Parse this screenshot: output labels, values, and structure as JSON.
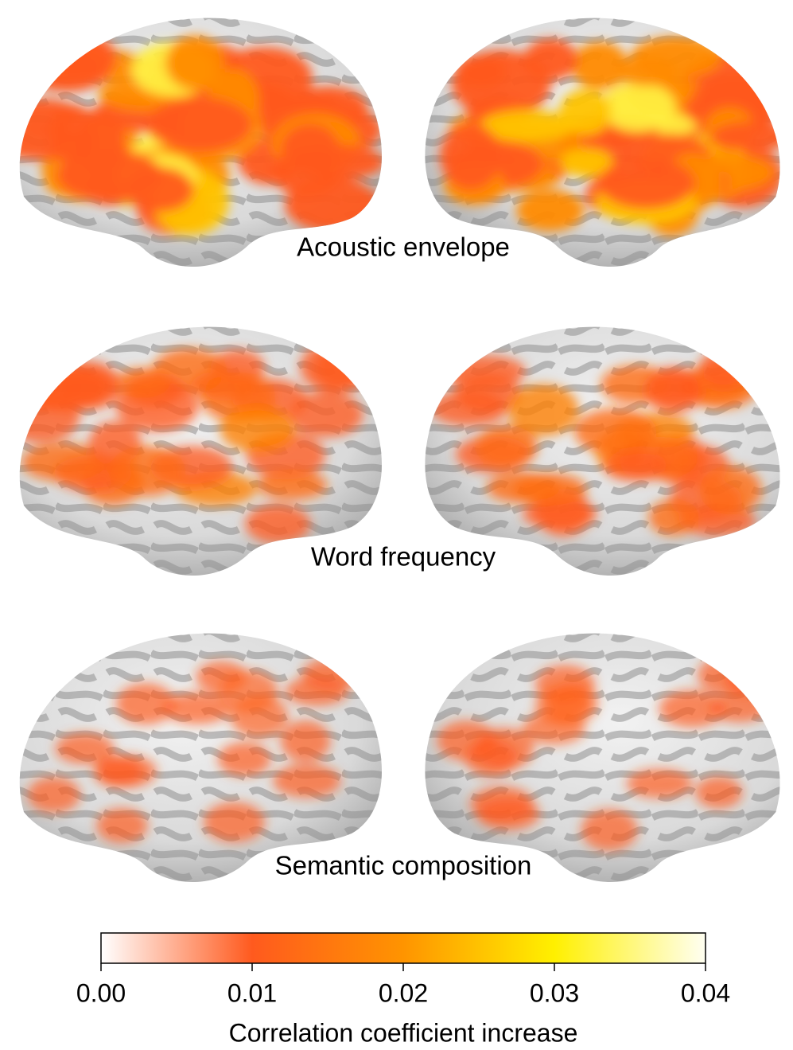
{
  "panels": [
    {
      "label": "Acoustic envelope"
    },
    {
      "label": "Word frequency"
    },
    {
      "label": "Semantic composition"
    }
  ],
  "colorbar": {
    "lim": [
      0,
      0.04
    ],
    "ticks": [
      {
        "value": 0,
        "label": "0.00"
      },
      0.01,
      0.02,
      0.03,
      0.04
    ],
    "label": "Correlation coefficient increase",
    "colors": [
      "#ffffff",
      "#ff5a1e",
      "#ff9400",
      "#fff000",
      "#fffff2"
    ]
  }
}
